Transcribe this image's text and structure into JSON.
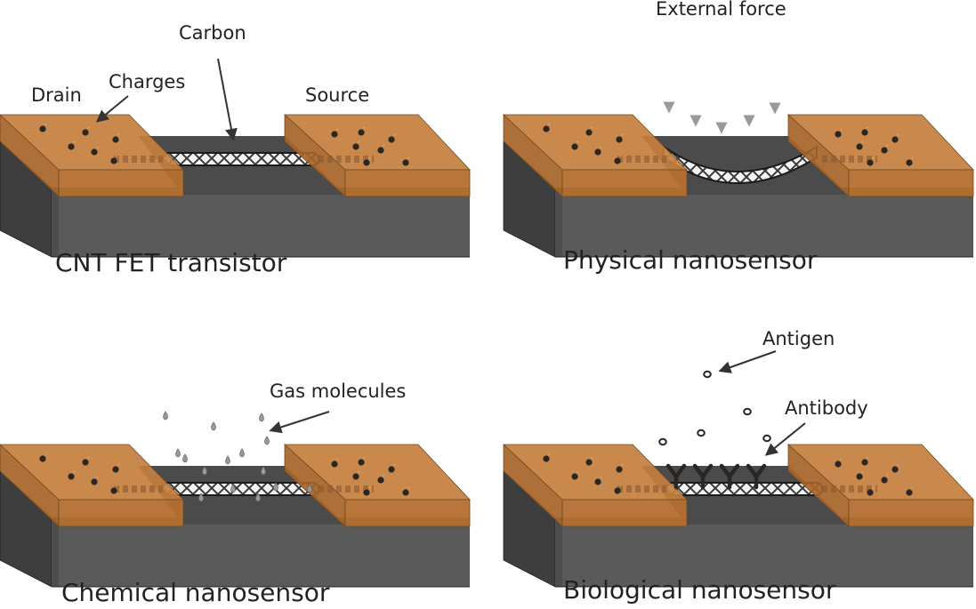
{
  "colors": {
    "gold_top": "#c47f3e",
    "gold_front": "#b46f30",
    "gold_side": "#a66428",
    "slab_top": "#4a4a4a",
    "slab_front": "#5a5a5a",
    "slab_side": "#3e3e3e",
    "edge": "#1f1f1f",
    "electron": "#2a2624",
    "arrow": "#333333",
    "force_arrow": "#9a9a9a"
  },
  "panels": [
    {
      "title": "CNT FET transistor",
      "labels": {
        "drain": "Drain",
        "charges": "Charges",
        "carbon": "Carbon",
        "source": "Source"
      }
    },
    {
      "title": "Physical nanosensor",
      "labels": {
        "force": "External force"
      }
    },
    {
      "title": "Chemical nanosensor",
      "labels": {
        "gas": "Gas molecules"
      }
    },
    {
      "title": "Biological nanosensor",
      "labels": {
        "antigen": "Antigen",
        "antibody": "Antibody"
      }
    }
  ],
  "icons": [
    "electron-icon",
    "nanotube-icon",
    "force-arrow-icon",
    "gas-molecule-icon",
    "antigen-icon",
    "antibody-icon"
  ]
}
